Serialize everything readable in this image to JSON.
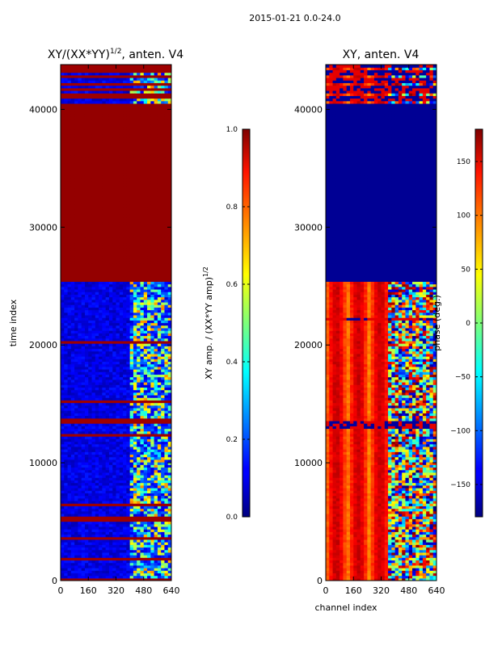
{
  "figure_title": "2015-01-21 0.0-24.0",
  "chart_data": [
    {
      "type": "heatmap",
      "title_prefix": "XY/(XX*YY)",
      "title_exp": "1/2",
      "title_suffix": ", anten. V4",
      "xlabel": "",
      "ylabel": "time index",
      "xlim": [
        0,
        640
      ],
      "ylim": [
        0,
        43800
      ],
      "xticks": [
        0,
        160,
        320,
        480,
        640
      ],
      "yticks": [
        0,
        10000,
        20000,
        30000,
        40000
      ],
      "colorbar": {
        "label_prefix": "XY amp. / (XX*YY amp)",
        "label_exp": "1/2",
        "range": [
          0.0,
          1.0
        ],
        "ticks": [
          "0.0",
          "0.2",
          "0.4",
          "0.6",
          "0.8",
          "1.0"
        ],
        "tick_values": [
          0.0,
          0.2,
          0.4,
          0.6,
          0.8,
          1.0
        ],
        "colormap": "jet"
      },
      "regions": [
        {
          "y_from": 0,
          "y_to": 25500,
          "description": "mostly low ratio (~0.05-0.15) with structured higher values in channels 400-640"
        },
        {
          "y_from": 25500,
          "y_to": 40500,
          "description": "saturated ratio ~1.0 across all channels"
        },
        {
          "y_from": 40500,
          "y_to": 43800,
          "description": "mixed rows of ~1.0 and low values"
        }
      ]
    },
    {
      "type": "heatmap",
      "title": "XY, anten. V4",
      "xlabel": "channel index",
      "ylabel": "",
      "xlim": [
        0,
        640
      ],
      "ylim": [
        0,
        43800
      ],
      "xticks": [
        0,
        160,
        320,
        480,
        640
      ],
      "yticks": [
        0,
        10000,
        20000,
        30000,
        40000
      ],
      "colorbar": {
        "label": "phase (deg.)",
        "range": [
          -180,
          180
        ],
        "ticks": [
          "−150",
          "−100",
          "−50",
          "0",
          "50",
          "100",
          "150"
        ],
        "tick_values": [
          -150,
          -100,
          -50,
          0,
          50,
          100,
          150
        ],
        "colormap": "jet"
      },
      "regions": [
        {
          "y_from": 0,
          "y_to": 25500,
          "description": "phase ~100-180 deg in channels 0-360 with vertical banding, mixed -180..180 in channels 400-640"
        },
        {
          "y_from": 25500,
          "y_to": 40500,
          "description": "phase ~ -180 deg across all channels"
        },
        {
          "y_from": 40500,
          "y_to": 43800,
          "description": "mixed rows"
        }
      ]
    }
  ]
}
